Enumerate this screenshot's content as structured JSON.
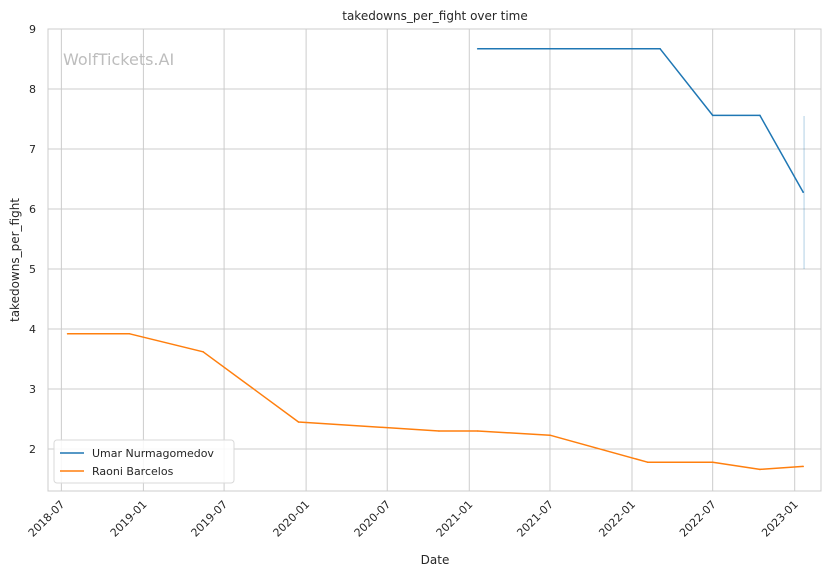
{
  "watermark": "WolfTickets.AI",
  "chart_data": {
    "type": "line",
    "title": "takedowns_per_fight over time",
    "xlabel": "Date",
    "ylabel": "takedowns_per_fight",
    "x_range": [
      "2018-06-01",
      "2023-03-01"
    ],
    "ylim": [
      1.3,
      9.0
    ],
    "y_ticks": [
      2,
      3,
      4,
      5,
      6,
      7,
      8,
      9
    ],
    "x_ticks": [
      {
        "date": "2018-07-01",
        "label": "2018-07"
      },
      {
        "date": "2019-01-01",
        "label": "2019-01"
      },
      {
        "date": "2019-07-01",
        "label": "2019-07"
      },
      {
        "date": "2020-01-01",
        "label": "2020-01"
      },
      {
        "date": "2020-07-01",
        "label": "2020-07"
      },
      {
        "date": "2021-01-01",
        "label": "2021-01"
      },
      {
        "date": "2021-07-01",
        "label": "2021-07"
      },
      {
        "date": "2022-01-01",
        "label": "2022-01"
      },
      {
        "date": "2022-07-01",
        "label": "2022-07"
      },
      {
        "date": "2023-01-01",
        "label": "2023-01"
      }
    ],
    "grid": true,
    "legend_position": "bottom-left",
    "series": [
      {
        "name": "Umar Nurmagomedov",
        "color": "#1f77b4",
        "points": [
          {
            "x": "2021-01-20",
            "y": 8.67
          },
          {
            "x": "2022-03-05",
            "y": 8.67
          },
          {
            "x": "2022-07-01",
            "y": 7.56
          },
          {
            "x": "2022-10-15",
            "y": 7.56
          },
          {
            "x": "2023-01-20",
            "y": 6.28
          }
        ],
        "extra_mark": {
          "x": "2023-01-22",
          "y_low": 5.0,
          "y_high": 7.55
        }
      },
      {
        "name": "Raoni Barcelos",
        "color": "#ff7f0e",
        "points": [
          {
            "x": "2018-07-15",
            "y": 3.92
          },
          {
            "x": "2018-12-01",
            "y": 3.92
          },
          {
            "x": "2019-05-15",
            "y": 3.62
          },
          {
            "x": "2019-12-15",
            "y": 2.45
          },
          {
            "x": "2020-10-25",
            "y": 2.3
          },
          {
            "x": "2021-01-20",
            "y": 2.3
          },
          {
            "x": "2021-07-01",
            "y": 2.23
          },
          {
            "x": "2022-02-05",
            "y": 1.78
          },
          {
            "x": "2022-07-01",
            "y": 1.78
          },
          {
            "x": "2022-10-15",
            "y": 1.66
          },
          {
            "x": "2023-01-20",
            "y": 1.71
          }
        ]
      }
    ]
  }
}
